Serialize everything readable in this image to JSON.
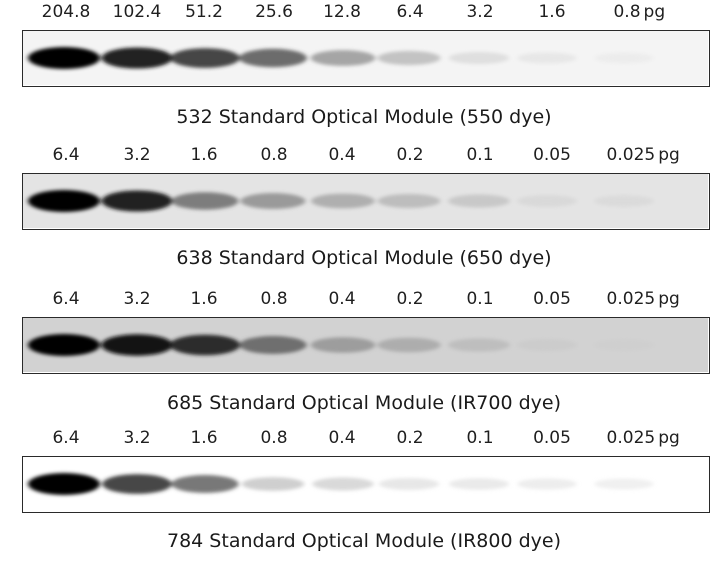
{
  "unit": "pg",
  "panels": [
    {
      "module": "532 Standard Optical Module (550 dye)",
      "amounts": [
        "204.8",
        "102.4",
        "51.2",
        "25.6",
        "12.8",
        "6.4",
        "3.2",
        "1.6",
        "0.8"
      ],
      "background": "#f4f4f4",
      "band_intensity": [
        1.0,
        0.92,
        0.82,
        0.7,
        0.48,
        0.34,
        0.16,
        0.09,
        0.05
      ]
    },
    {
      "module": "638 Standard Optical Module (650 dye)",
      "amounts": [
        "6.4",
        "3.2",
        "1.6",
        "0.8",
        "0.4",
        "0.2",
        "0.1",
        "0.05",
        "0.025"
      ],
      "background": "#e4e4e4",
      "band_intensity": [
        1.0,
        0.92,
        0.62,
        0.5,
        0.4,
        0.33,
        0.26,
        0.14,
        0.12
      ]
    },
    {
      "module": "685 Standard Optical Module (IR700 dye)",
      "amounts": [
        "6.4",
        "3.2",
        "1.6",
        "0.8",
        "0.4",
        "0.2",
        "0.1",
        "0.05",
        "0.025"
      ],
      "background": "#d2d2d2",
      "band_intensity": [
        1.0,
        0.95,
        0.88,
        0.66,
        0.46,
        0.38,
        0.28,
        0.17,
        0.14
      ]
    },
    {
      "module": "784 Standard Optical Module (IR800 dye)",
      "amounts": [
        "6.4",
        "3.2",
        "1.6",
        "0.8",
        "0.4",
        "0.2",
        "0.1",
        "0.05",
        "0.025"
      ],
      "background": "#ffffff",
      "band_intensity": [
        1.0,
        0.82,
        0.66,
        0.3,
        0.24,
        0.15,
        0.12,
        0.1,
        0.08
      ]
    }
  ]
}
